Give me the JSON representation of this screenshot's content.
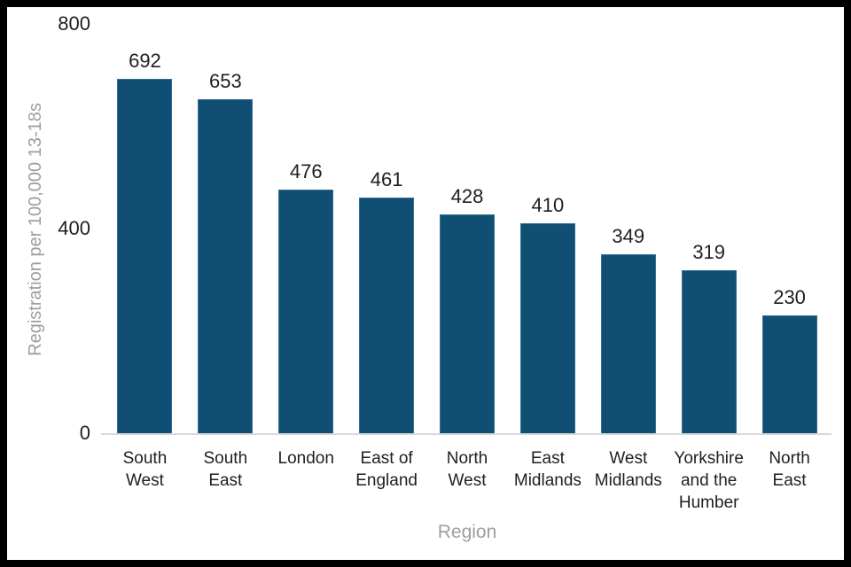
{
  "frame": {
    "border_color": "#000000",
    "chart_background": "#ffffff"
  },
  "chart_data": {
    "type": "bar",
    "title": "",
    "categories": [
      "South West",
      "South East",
      "London",
      "East of England",
      "North West",
      "East Midlands",
      "West Midlands",
      "Yorkshire and the Humber",
      "North East"
    ],
    "values": [
      692,
      653,
      476,
      461,
      428,
      410,
      349,
      319,
      230
    ],
    "xlabel": "Region",
    "ylabel": "Registration per 100,000 13-18s",
    "ylim": [
      0,
      800
    ],
    "yticks": [
      0,
      400,
      800
    ],
    "grid": false,
    "legend": "none",
    "show_data_labels": true,
    "bar_color": "#114E73",
    "axis_line_color": "#D9D9D9",
    "tick_label_color": "#1f1f1f",
    "data_label_color": "#1f1f1f",
    "axis_title_color": "#9E9E9E"
  }
}
